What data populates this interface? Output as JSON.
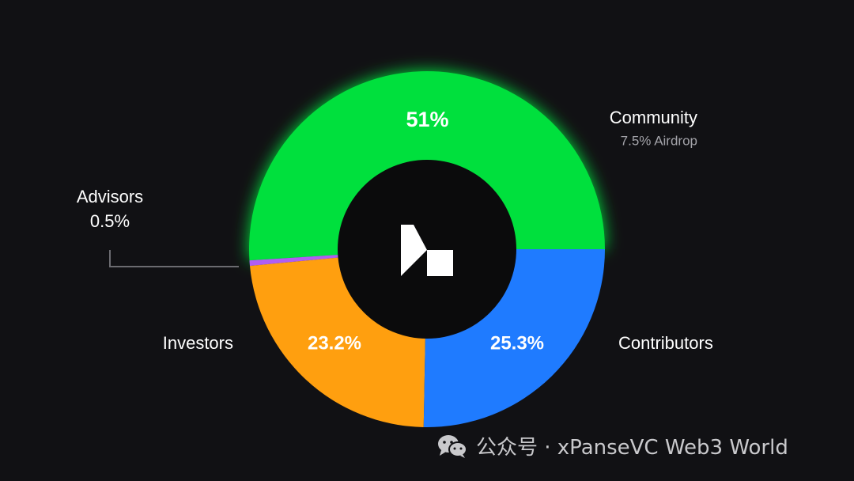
{
  "chart_data": {
    "type": "pie",
    "series": [
      {
        "name": "Community",
        "value": 51,
        "label": "51%",
        "sub_label": "7.5% Airdrop",
        "color": "#00e03c"
      },
      {
        "name": "Contributors",
        "value": 25.3,
        "label": "25.3%",
        "color": "#1f7bff"
      },
      {
        "name": "Investors",
        "value": 23.2,
        "label": "23.2%",
        "color": "#ff9f0f"
      },
      {
        "name": "Advisors",
        "value": 0.5,
        "label": "0.5%",
        "color": "#b05ef2"
      }
    ],
    "donut": true,
    "center_logo": "brand-logo-icon"
  },
  "watermark": {
    "icon": "wechat-icon",
    "text": "公众号 · xPanseVC Web3 World"
  },
  "colors": {
    "background": "#111114",
    "center": "#0b0b0c"
  }
}
